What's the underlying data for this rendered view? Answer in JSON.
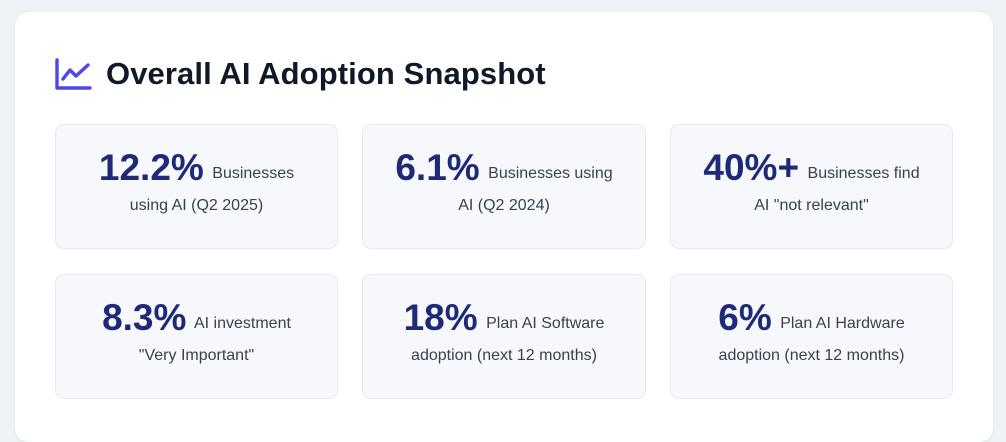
{
  "header": {
    "title": "Overall AI Adoption Snapshot",
    "icon": "line-chart-icon",
    "icon_color": "#4f46e5"
  },
  "colors": {
    "value": "#1e2a78",
    "label": "#374151",
    "tile_bg": "#f6f8fb",
    "page_bg": "#eef2f6"
  },
  "stats": [
    {
      "value": "12.2%",
      "label": "Businesses using AI (Q2 2025)"
    },
    {
      "value": "6.1%",
      "label": "Businesses using AI (Q2 2024)"
    },
    {
      "value": "40%+",
      "label": "Businesses find AI \"not relevant\""
    },
    {
      "value": "8.3%",
      "label": "AI investment \"Very Important\""
    },
    {
      "value": "18%",
      "label": "Plan AI Software adoption (next 12 months)"
    },
    {
      "value": "6%",
      "label": "Plan AI Hardware adoption (next 12 months)"
    }
  ]
}
